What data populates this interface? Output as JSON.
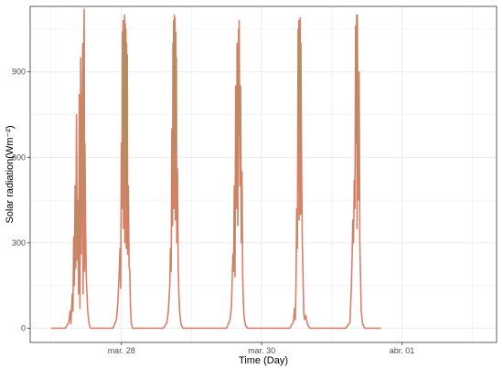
{
  "chart_data": {
    "type": "line",
    "title": "",
    "xlabel": "Time (Day)",
    "ylabel": "Solar radiation(Wm⁻²)",
    "x_ticks": [
      {
        "label": "mar. 28",
        "day": 1
      },
      {
        "label": "mar. 30",
        "day": 3
      },
      {
        "label": "abr. 01",
        "day": 5
      }
    ],
    "xlim_days": [
      -0.3,
      6.35
    ],
    "y_ticks": [
      0,
      300,
      600,
      900
    ],
    "ylim": [
      -50,
      1130
    ],
    "grid": true,
    "colors": {
      "series": "#f8766d",
      "overlay": "#8f9a5a",
      "panel_border": "#333333",
      "grid": "#ebebeb"
    },
    "series": [
      {
        "values": [
          [
            0.0,
            0
          ],
          [
            0.12,
            0
          ],
          [
            0.2,
            0
          ],
          [
            0.25,
            20
          ],
          [
            0.27,
            60
          ],
          [
            0.28,
            15
          ],
          [
            0.3,
            120
          ],
          [
            0.31,
            60
          ],
          [
            0.32,
            320
          ],
          [
            0.33,
            150
          ],
          [
            0.34,
            500
          ],
          [
            0.35,
            210
          ],
          [
            0.36,
            750
          ],
          [
            0.37,
            240
          ],
          [
            0.38,
            450
          ],
          [
            0.39,
            120
          ],
          [
            0.4,
            820
          ],
          [
            0.41,
            70
          ],
          [
            0.42,
            950
          ],
          [
            0.43,
            260
          ],
          [
            0.44,
            700
          ],
          [
            0.45,
            1000
          ],
          [
            0.455,
            120
          ],
          [
            0.46,
            820
          ],
          [
            0.47,
            1120
          ],
          [
            0.475,
            200
          ],
          [
            0.48,
            650
          ],
          [
            0.49,
            360
          ],
          [
            0.5,
            180
          ],
          [
            0.51,
            120
          ],
          [
            0.52,
            60
          ],
          [
            0.54,
            15
          ],
          [
            0.56,
            0
          ],
          [
            0.7,
            0
          ],
          [
            0.8,
            0
          ],
          [
            0.88,
            0
          ],
          [
            0.93,
            30
          ],
          [
            0.95,
            90
          ],
          [
            0.97,
            200
          ],
          [
            0.98,
            280
          ],
          [
            0.99,
            140
          ],
          [
            1.0,
            650
          ],
          [
            1.01,
            420
          ],
          [
            1.015,
            1040
          ],
          [
            1.02,
            600
          ],
          [
            1.025,
            1080
          ],
          [
            1.03,
            350
          ],
          [
            1.035,
            1040
          ],
          [
            1.04,
            700
          ],
          [
            1.045,
            1100
          ],
          [
            1.05,
            300
          ],
          [
            1.055,
            1070
          ],
          [
            1.06,
            500
          ],
          [
            1.065,
            1050
          ],
          [
            1.07,
            280
          ],
          [
            1.075,
            1000
          ],
          [
            1.08,
            420
          ],
          [
            1.085,
            960
          ],
          [
            1.09,
            260
          ],
          [
            1.1,
            500
          ],
          [
            1.11,
            220
          ],
          [
            1.12,
            200
          ],
          [
            1.13,
            80
          ],
          [
            1.14,
            20
          ],
          [
            1.16,
            0
          ],
          [
            1.3,
            0
          ],
          [
            1.4,
            0
          ],
          [
            1.5,
            0
          ],
          [
            1.6,
            0
          ],
          [
            1.65,
            20
          ],
          [
            1.67,
            60
          ],
          [
            1.69,
            150
          ],
          [
            1.7,
            280
          ],
          [
            1.71,
            200
          ],
          [
            1.72,
            700
          ],
          [
            1.73,
            360
          ],
          [
            1.735,
            1000
          ],
          [
            1.74,
            650
          ],
          [
            1.745,
            1080
          ],
          [
            1.75,
            420
          ],
          [
            1.755,
            1100
          ],
          [
            1.76,
            850
          ],
          [
            1.765,
            1090
          ],
          [
            1.77,
            380
          ],
          [
            1.775,
            1040
          ],
          [
            1.78,
            620
          ],
          [
            1.785,
            950
          ],
          [
            1.79,
            300
          ],
          [
            1.8,
            560
          ],
          [
            1.81,
            220
          ],
          [
            1.82,
            120
          ],
          [
            1.83,
            60
          ],
          [
            1.85,
            15
          ],
          [
            1.88,
            0
          ],
          [
            2.0,
            0
          ],
          [
            2.2,
            0
          ],
          [
            2.3,
            0
          ],
          [
            2.4,
            0
          ],
          [
            2.5,
            0
          ],
          [
            2.55,
            30
          ],
          [
            2.57,
            80
          ],
          [
            2.59,
            260
          ],
          [
            2.6,
            200
          ],
          [
            2.61,
            500
          ],
          [
            2.62,
            180
          ],
          [
            2.63,
            850
          ],
          [
            2.64,
            420
          ],
          [
            2.65,
            1000
          ],
          [
            2.66,
            360
          ],
          [
            2.67,
            1050
          ],
          [
            2.675,
            680
          ],
          [
            2.68,
            1080
          ],
          [
            2.69,
            500
          ],
          [
            2.7,
            850
          ],
          [
            2.71,
            300
          ],
          [
            2.72,
            550
          ],
          [
            2.73,
            180
          ],
          [
            2.74,
            90
          ],
          [
            2.75,
            40
          ],
          [
            2.77,
            10
          ],
          [
            2.8,
            0
          ],
          [
            3.0,
            0
          ],
          [
            3.2,
            0
          ],
          [
            3.3,
            0
          ],
          [
            3.4,
            0
          ],
          [
            3.45,
            20
          ],
          [
            3.47,
            70
          ],
          [
            3.48,
            30
          ],
          [
            3.49,
            150
          ],
          [
            3.5,
            420
          ],
          [
            3.51,
            280
          ],
          [
            3.52,
            1050
          ],
          [
            3.525,
            620
          ],
          [
            3.53,
            1080
          ],
          [
            3.535,
            380
          ],
          [
            3.54,
            1060
          ],
          [
            3.545,
            820
          ],
          [
            3.55,
            1090
          ],
          [
            3.555,
            400
          ],
          [
            3.56,
            1000
          ],
          [
            3.57,
            550
          ],
          [
            3.58,
            300
          ],
          [
            3.59,
            180
          ],
          [
            3.6,
            60
          ],
          [
            3.61,
            30
          ],
          [
            3.63,
            45
          ],
          [
            3.64,
            30
          ],
          [
            3.66,
            10
          ],
          [
            3.69,
            0
          ],
          [
            3.9,
            0
          ],
          [
            4.0,
            0
          ],
          [
            4.1,
            0
          ],
          [
            4.2,
            0
          ],
          [
            4.26,
            20
          ],
          [
            4.28,
            150
          ],
          [
            4.29,
            250
          ],
          [
            4.3,
            380
          ],
          [
            4.31,
            300
          ],
          [
            4.32,
            520
          ],
          [
            4.33,
            420
          ],
          [
            4.34,
            1060
          ],
          [
            4.35,
            650
          ],
          [
            4.355,
            1100
          ],
          [
            4.36,
            350
          ],
          [
            4.365,
            1100
          ],
          [
            4.37,
            780
          ],
          [
            4.38,
            450
          ],
          [
            4.39,
            900
          ],
          [
            4.4,
            300
          ],
          [
            4.41,
            180
          ],
          [
            4.42,
            60
          ],
          [
            4.44,
            15
          ],
          [
            4.47,
            0
          ],
          [
            4.6,
            0
          ],
          [
            4.7,
            0
          ]
        ]
      }
    ]
  }
}
